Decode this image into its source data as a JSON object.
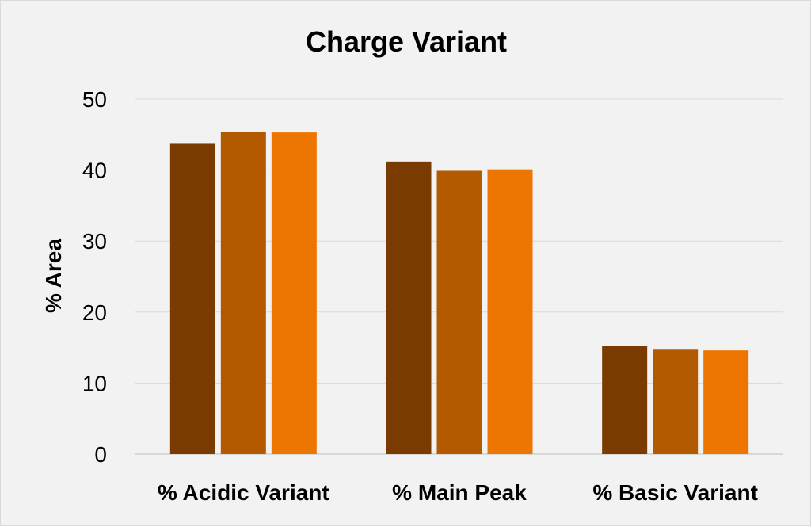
{
  "chart_data": {
    "type": "bar",
    "title": "Charge Variant",
    "xlabel": "",
    "ylabel": "% Area",
    "ylim": [
      0,
      50
    ],
    "yticks": [
      0,
      10,
      20,
      30,
      40,
      50
    ],
    "grid": true,
    "legend": "none",
    "categories": [
      "% Acidic Variant",
      "% Main Peak",
      "% Basic Variant"
    ],
    "series": [
      {
        "color": "#7a3b00",
        "values": [
          43.7,
          41.2,
          15.2
        ]
      },
      {
        "color": "#b35900",
        "values": [
          45.4,
          39.9,
          14.7
        ]
      },
      {
        "color": "#ed7600",
        "values": [
          45.3,
          40.1,
          14.6
        ]
      }
    ]
  }
}
